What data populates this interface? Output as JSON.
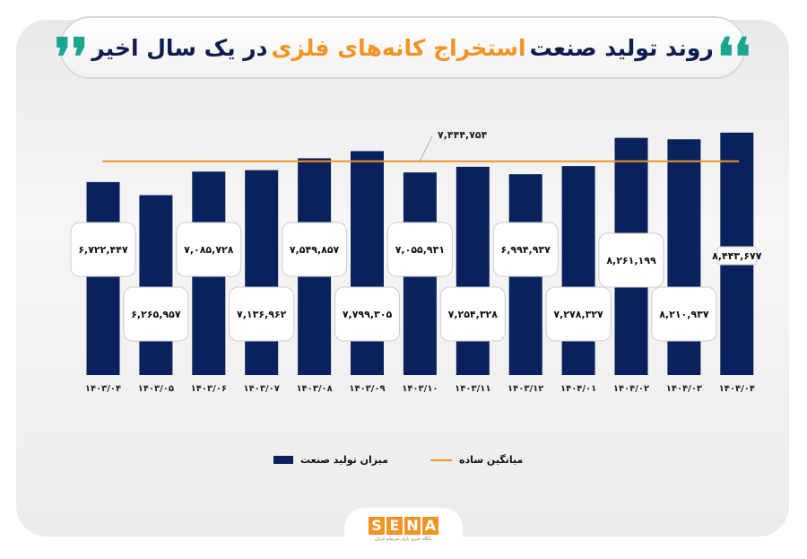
{
  "title": {
    "part1": "روند تولید صنعت",
    "part2": "استخراج کانه‌های فلزی",
    "part3": "در یک سال اخیر",
    "quote_open": "❛❛",
    "quote_close": "❜❜"
  },
  "colors": {
    "bar": "#0a215e",
    "average_line": "#f39323",
    "title_accent": "#f39323",
    "quote": "#1aa58f",
    "title_main": "#0d1d4f"
  },
  "chart_data": {
    "type": "bar",
    "title": "روند تولید صنعت استخراج کانه‌های فلزی در یک سال اخیر",
    "categories": [
      "۱۴۰۳/۰۴",
      "۱۴۰۳/۰۵",
      "۱۴۰۳/۰۶",
      "۱۴۰۳/۰۷",
      "۱۴۰۳/۰۸",
      "۱۴۰۳/۰۹",
      "۱۴۰۳/۱۰",
      "۱۴۰۳/۱۱",
      "۱۴۰۳/۱۲",
      "۱۴۰۴/۰۱",
      "۱۴۰۴/۰۲",
      "۱۴۰۴/۰۳",
      "۱۴۰۴/۰۴"
    ],
    "series": [
      {
        "name": "میزان تولید صنعت",
        "type": "bar",
        "values": [
          6722447,
          6265957,
          7085728,
          7136962,
          7549857,
          7799305,
          7055931,
          7254328,
          6994937,
          7278327,
          8261199,
          8210937,
          8443677
        ],
        "labels": [
          "۶,۷۲۲,۴۴۷",
          "۶,۲۶۵,۹۵۷",
          "۷,۰۸۵,۷۲۸",
          "۷,۱۳۶,۹۶۲",
          "۷,۵۴۹,۸۵۷",
          "۷,۷۹۹,۳۰۵",
          "۷,۰۵۵,۹۳۱",
          "۷,۲۵۴,۳۲۸",
          "۶,۹۹۴,۹۳۷",
          "۷,۲۷۸,۳۲۷",
          "۸,۲۶۱,۱۹۹",
          "۸,۲۱۰,۹۳۷",
          "۸,۴۴۳,۶۷۷"
        ]
      },
      {
        "name": "میانگین ساده",
        "type": "line",
        "value": 7444754,
        "label": "۷,۴۴۴,۷۵۴"
      }
    ],
    "ylim": [
      0,
      8500000
    ],
    "grid": false,
    "legend": "bottom"
  },
  "logo": {
    "text": "SENA",
    "subtitle": "پایگاه خبری بازار سرمایه ایران"
  }
}
